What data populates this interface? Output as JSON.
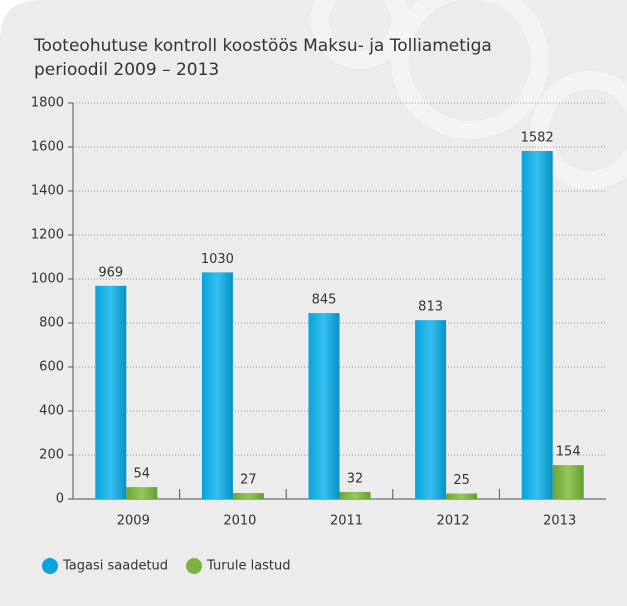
{
  "chart_data": {
    "type": "bar",
    "title_lines": [
      "Tooteohutuse kontroll koostöös Maksu- ja Tolliametiga",
      "perioodil 2009 – 2013"
    ],
    "categories": [
      "2009",
      "2010",
      "2011",
      "2012",
      "2013"
    ],
    "series": [
      {
        "name": "Tagasi saadetud",
        "color": "#0aa3dc",
        "values": [
          969,
          1030,
          845,
          813,
          1582
        ]
      },
      {
        "name": "Turule lastud",
        "color": "#7ab43e",
        "values": [
          54,
          27,
          32,
          25,
          154
        ]
      }
    ],
    "ylim": [
      0,
      1800
    ],
    "yticks": [
      0,
      200,
      400,
      600,
      800,
      1000,
      1200,
      1400,
      1600,
      1800
    ],
    "grid": true
  }
}
